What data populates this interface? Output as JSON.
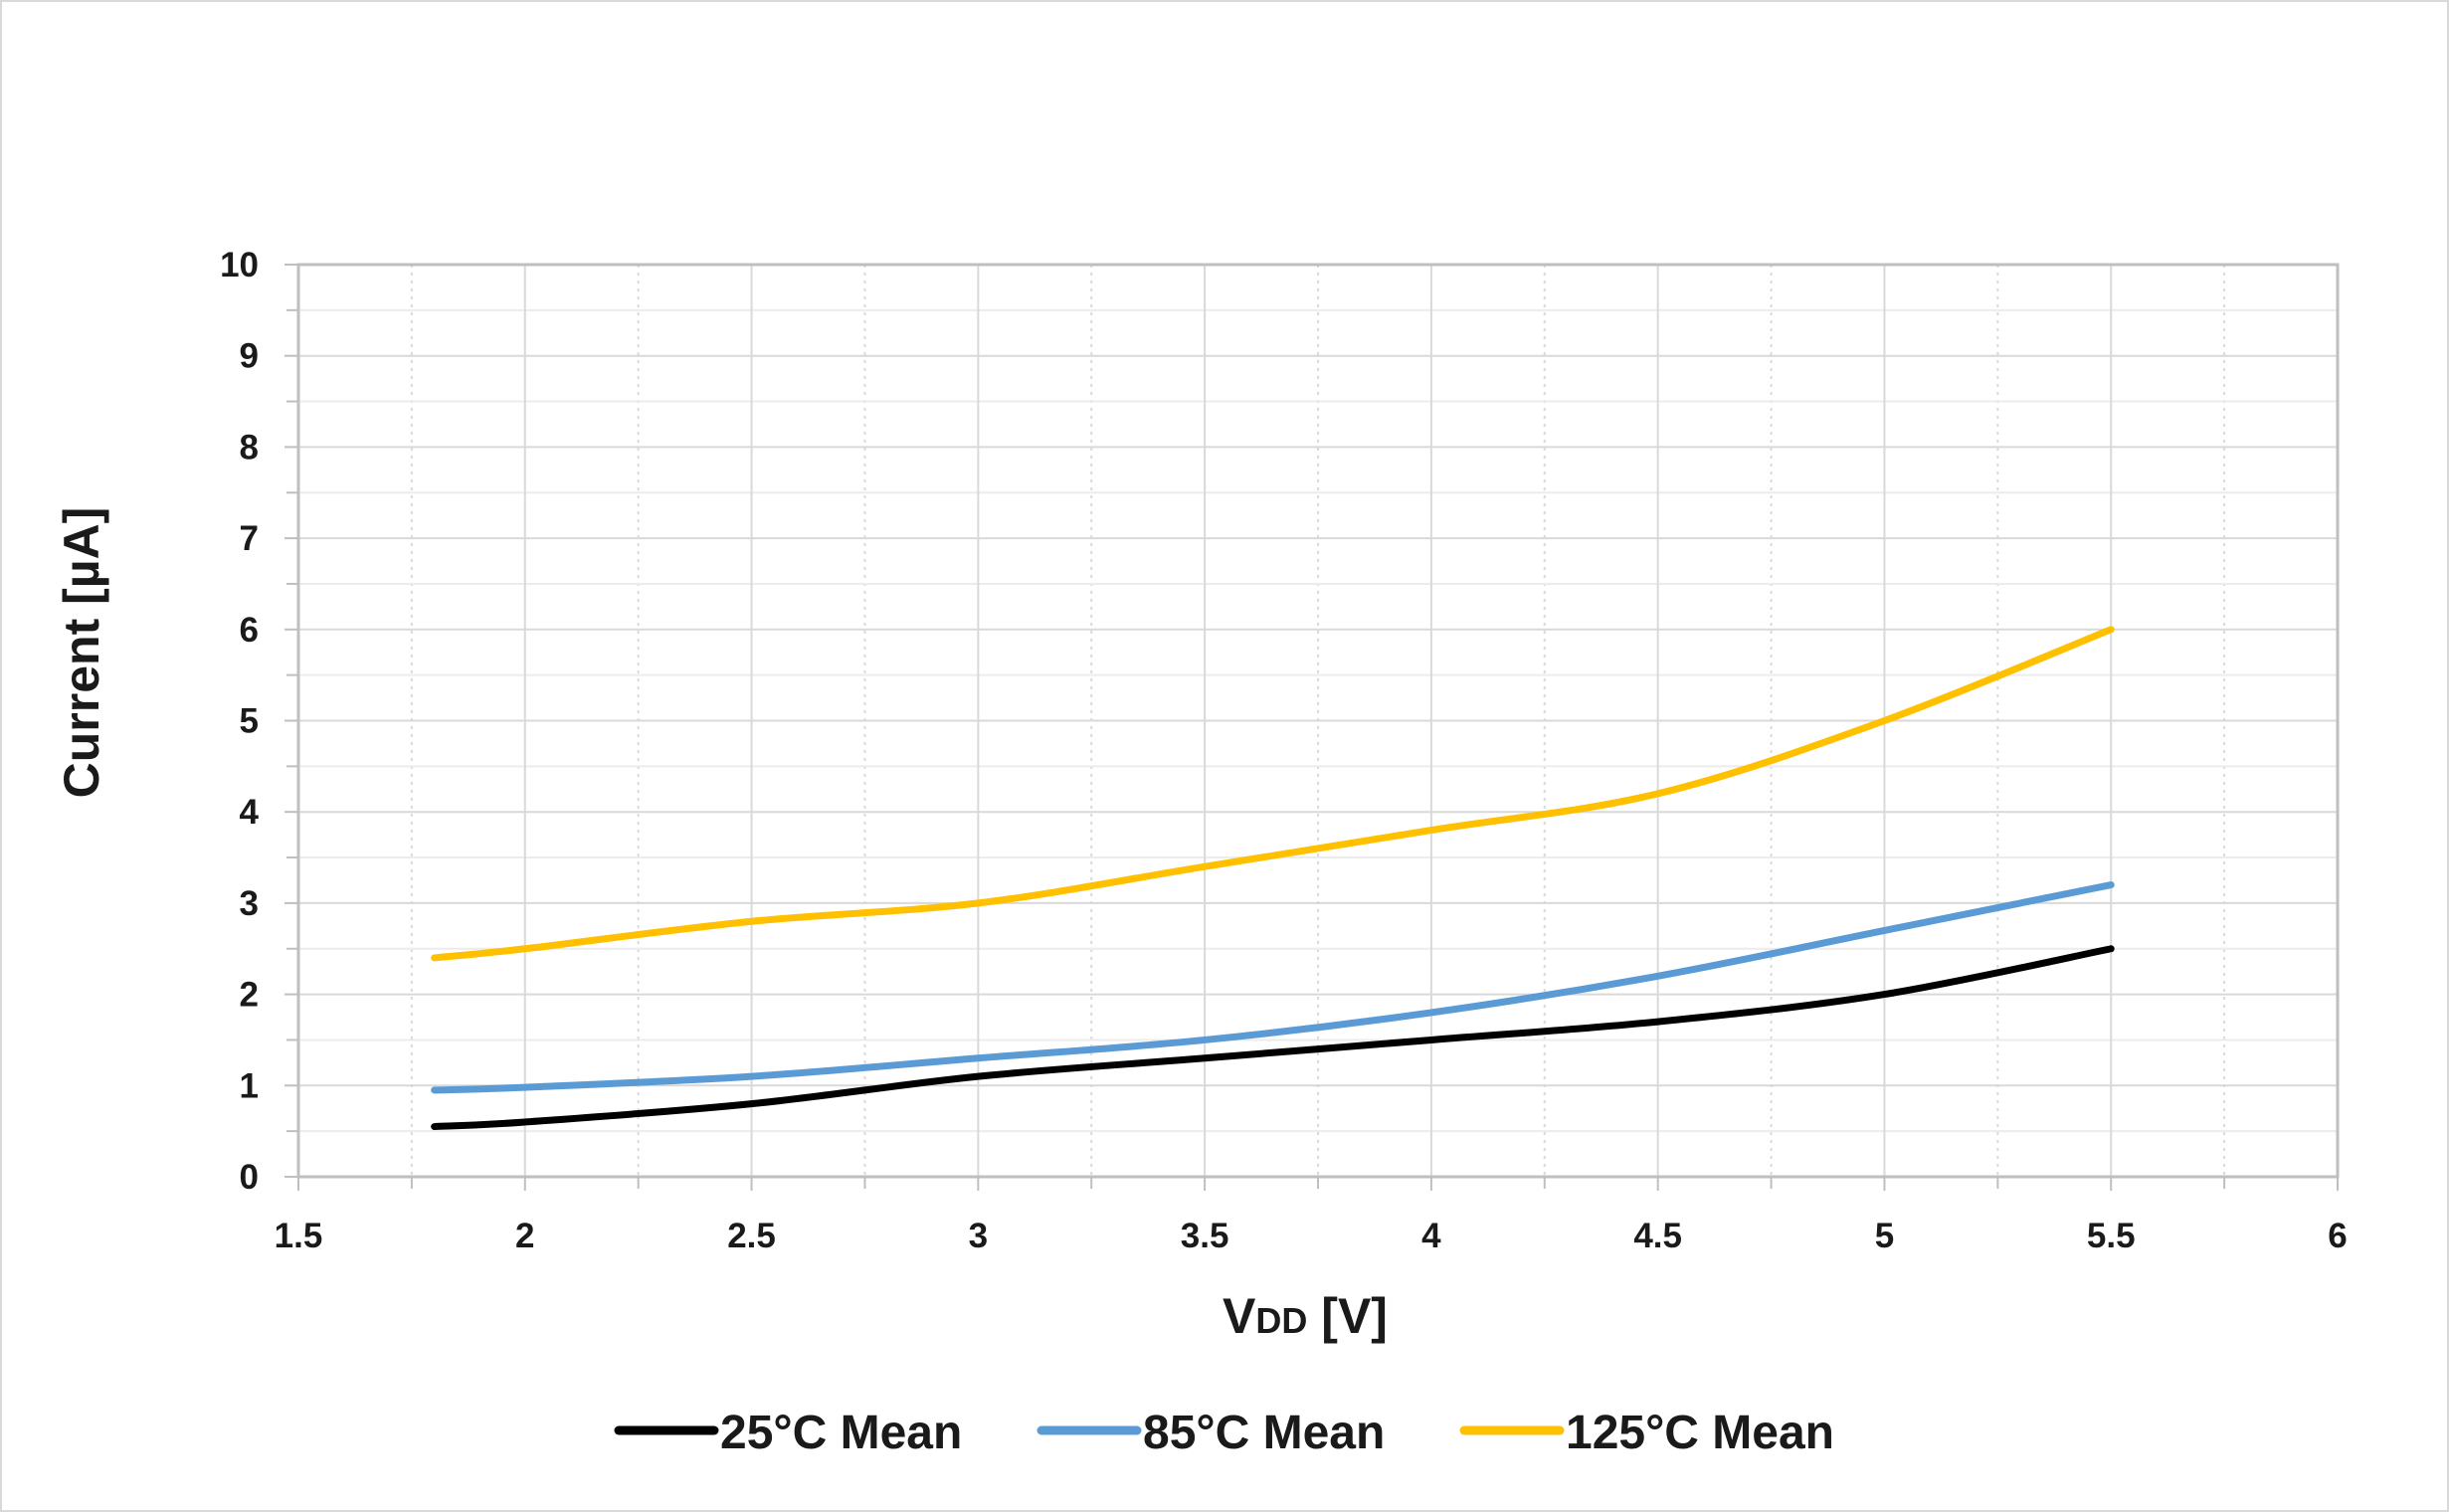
{
  "chart_data": {
    "type": "line",
    "title": "",
    "xlabel": {
      "main": "V",
      "sub": "DD",
      "unit": " [V]"
    },
    "ylabel": "Current [µA]",
    "xlim": [
      1.5,
      6
    ],
    "ylim": [
      0,
      10
    ],
    "x_ticks": [
      "1.5",
      "2",
      "2.5",
      "3",
      "3.5",
      "4",
      "4.5",
      "5",
      "5.5",
      "6"
    ],
    "y_ticks": [
      "0",
      "1",
      "2",
      "3",
      "4",
      "5",
      "6",
      "7",
      "8",
      "9",
      "10"
    ],
    "x_minor_step": 0.25,
    "y_minor_step": 0.5,
    "grid": true,
    "legend_position": "bottom",
    "x": [
      1.8,
      2,
      2.5,
      3,
      3.5,
      4,
      4.5,
      5,
      5.5
    ],
    "series": [
      {
        "name": "25°C Mean",
        "color": "#000000",
        "values": [
          0.55,
          0.6,
          0.8,
          1.1,
          1.3,
          1.5,
          1.7,
          2.0,
          2.5
        ]
      },
      {
        "name": "85°C Mean",
        "color": "#5b9bd5",
        "values": [
          0.95,
          0.98,
          1.1,
          1.3,
          1.5,
          1.8,
          2.2,
          2.7,
          3.2
        ]
      },
      {
        "name": "125°C Mean",
        "color": "#ffc000",
        "values": [
          2.4,
          2.5,
          2.8,
          3.0,
          3.4,
          3.8,
          4.2,
          5.0,
          6.0
        ]
      }
    ]
  }
}
